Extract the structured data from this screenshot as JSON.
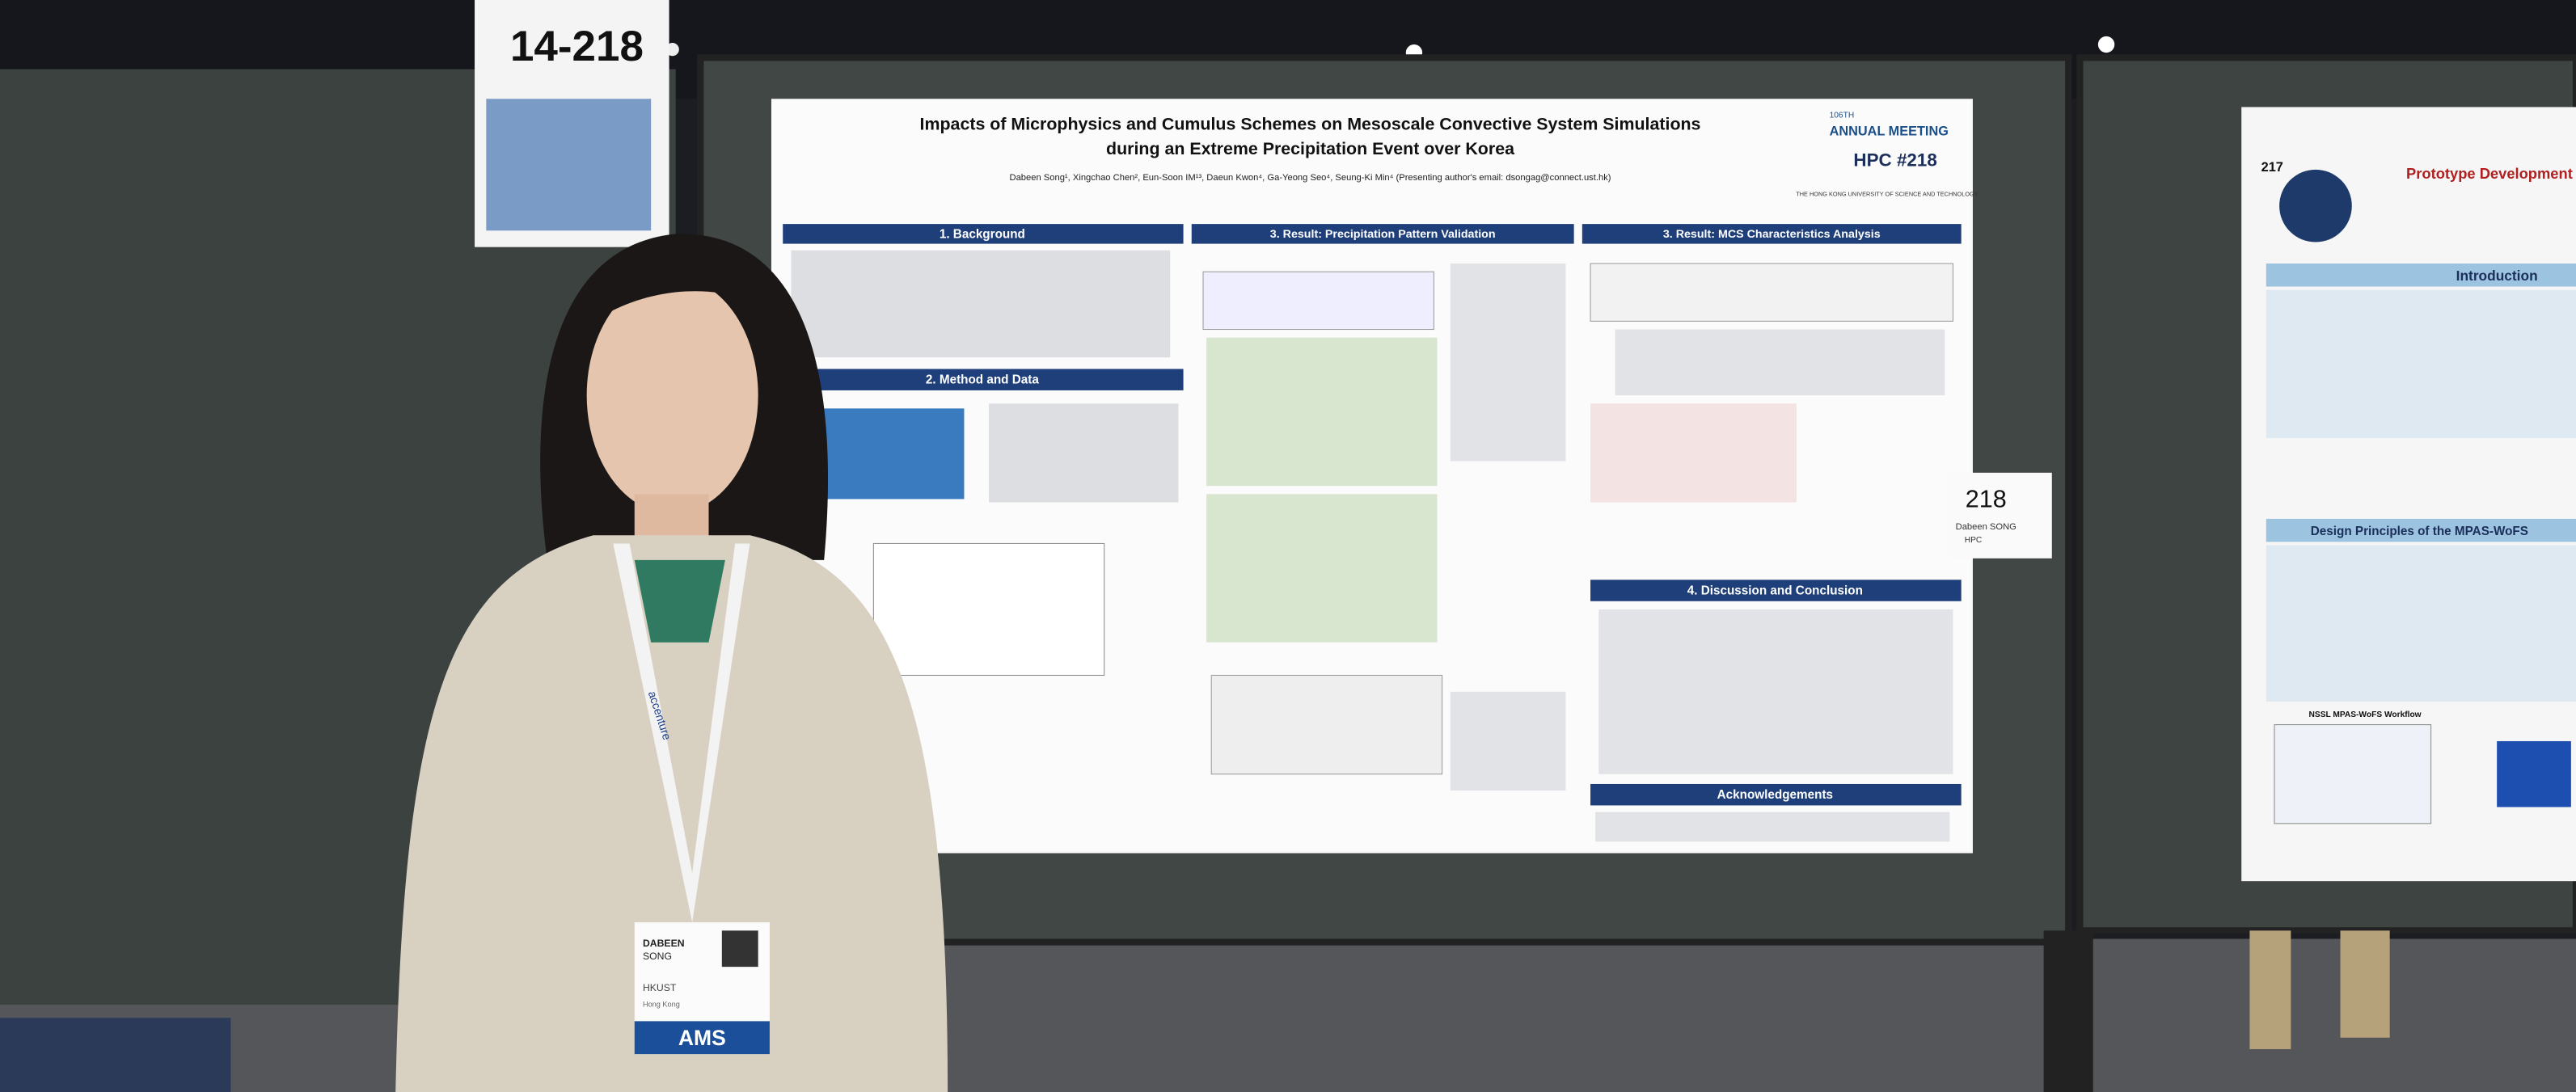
{
  "sign": {
    "text": "14-218"
  },
  "poster": {
    "title_line1": "Impacts of Microphysics and Cumulus Schemes on Mesoscale Convective System Simulations",
    "title_line2": "during an Extreme Precipitation Event over Korea",
    "authors": "Dabeen Song¹, Xingchao Chen², Eun-Soon IM¹³, Daeun Kwon⁴, Ga-Yeong Seo⁴, Seung-Ki Min⁴ (Presenting author's email: dsongag@connect.ust.hk)",
    "edition": "106TH",
    "meeting": "ANNUAL MEETING",
    "booth": "HPC #218",
    "university": "THE HONG KONG UNIVERSITY OF SCIENCE AND TECHNOLOGY",
    "sections": [
      "1. Background",
      "2. Method and Data",
      "3. Result: Precipitation Pattern Validation",
      "3. Result: MCS Characteristics Analysis",
      "4. Discussion and Conclusion",
      "Acknowledgements"
    ]
  },
  "tag": {
    "number": "218",
    "name": "Dabeen SONG",
    "group": "HPC"
  },
  "lanyard": "accenture",
  "badge": {
    "first": "DABEEN",
    "last": "SONG",
    "org": "HKUST",
    "location": "Hong Kong",
    "brand": "AMS"
  },
  "neighbor_poster": {
    "number": "217",
    "title": "Prototype Development of a",
    "sections": [
      "Introduction",
      "Design Principles of the MPAS-WoFS"
    ],
    "figure": "NSSL MPAS-WoFS Workflow"
  }
}
